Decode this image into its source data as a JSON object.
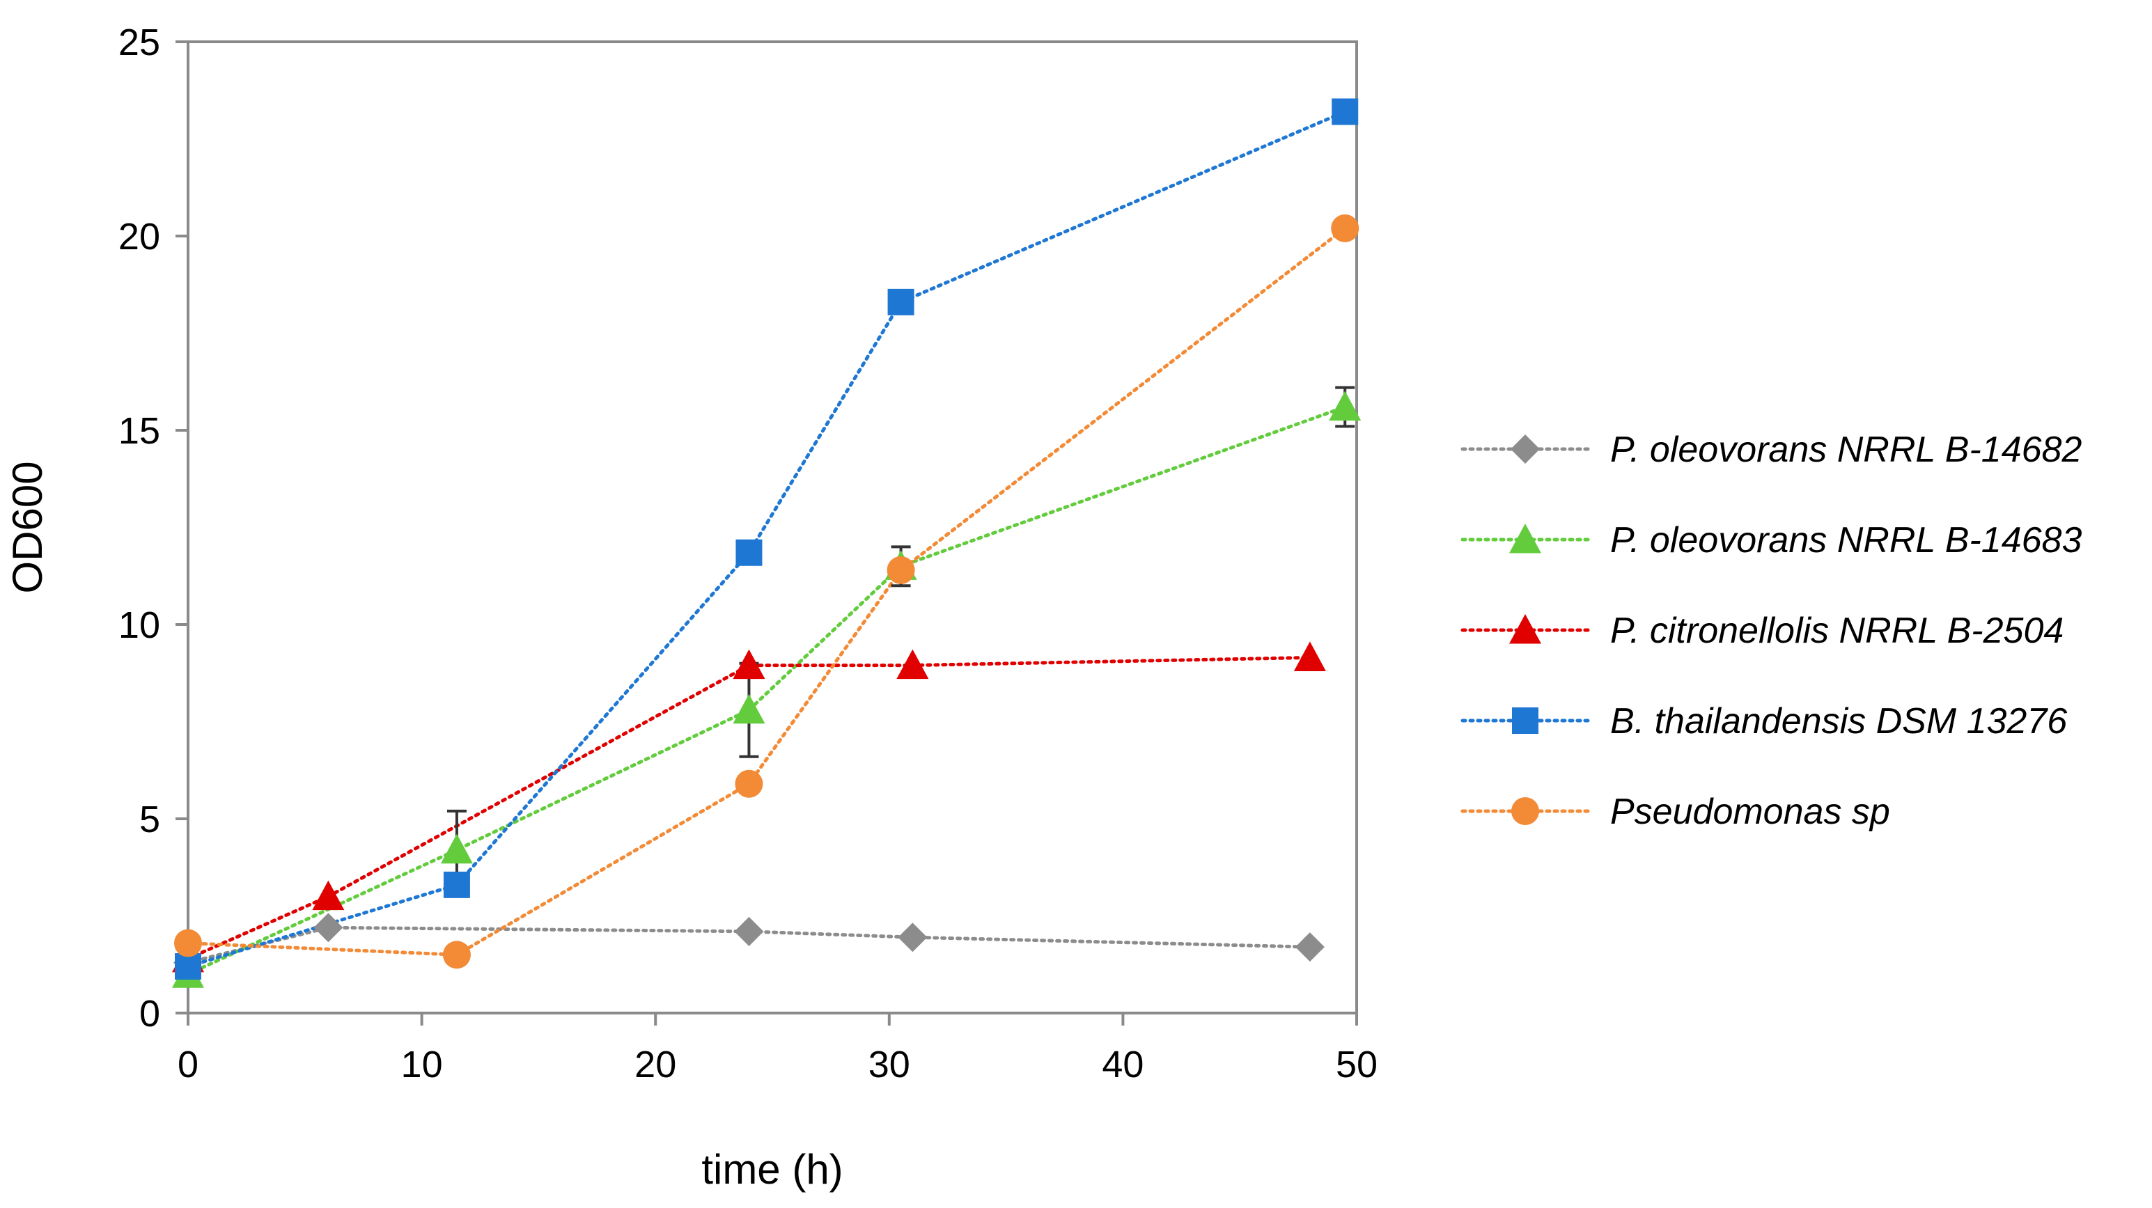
{
  "chart_data": {
    "type": "line",
    "title": "",
    "xlabel": "time (h)",
    "ylabel": "OD600",
    "xlim": [
      0,
      50
    ],
    "ylim": [
      0,
      25
    ],
    "xticks": [
      0,
      10,
      20,
      30,
      40,
      50
    ],
    "yticks": [
      0,
      5,
      10,
      15,
      20,
      25
    ],
    "grid": false,
    "legend_position": "right",
    "series": [
      {
        "name": "P. oleovorans NRRL B-14682",
        "color": "#8c8c8c",
        "marker": "diamond",
        "x": [
          0,
          6,
          24,
          31,
          48
        ],
        "y": [
          1.3,
          2.2,
          2.1,
          1.95,
          1.7
        ],
        "err": [
          0,
          0,
          0,
          0,
          0
        ]
      },
      {
        "name": "P. oleovorans NRRL B-14683",
        "color": "#62cc3c",
        "marker": "triangle",
        "x": [
          0,
          11.5,
          24,
          30.5,
          49.5
        ],
        "y": [
          1.0,
          4.2,
          7.8,
          11.5,
          15.6
        ],
        "err": [
          0,
          1.0,
          1.2,
          0.5,
          0.5
        ]
      },
      {
        "name": "P. citronellolis NRRL B-2504",
        "color": "#e00000",
        "marker": "triangle",
        "x": [
          0,
          6,
          24,
          31,
          48
        ],
        "y": [
          1.4,
          3.0,
          8.95,
          8.95,
          9.15
        ],
        "err": [
          0,
          0,
          0,
          0,
          0
        ]
      },
      {
        "name": "B. thailandensis DSM 13276",
        "color": "#1f77d4",
        "marker": "square",
        "x": [
          0,
          11.5,
          24,
          30.5,
          49.5
        ],
        "y": [
          1.2,
          3.3,
          11.85,
          18.3,
          23.2
        ],
        "err": [
          0,
          0,
          0,
          0,
          0
        ]
      },
      {
        "name": "Pseudomonas sp",
        "color": "#f28a36",
        "marker": "circle",
        "x": [
          0,
          11.5,
          24,
          30.5,
          49.5
        ],
        "y": [
          1.8,
          1.5,
          5.9,
          11.4,
          20.2
        ],
        "err": [
          0,
          0,
          0,
          0,
          0
        ]
      }
    ]
  }
}
